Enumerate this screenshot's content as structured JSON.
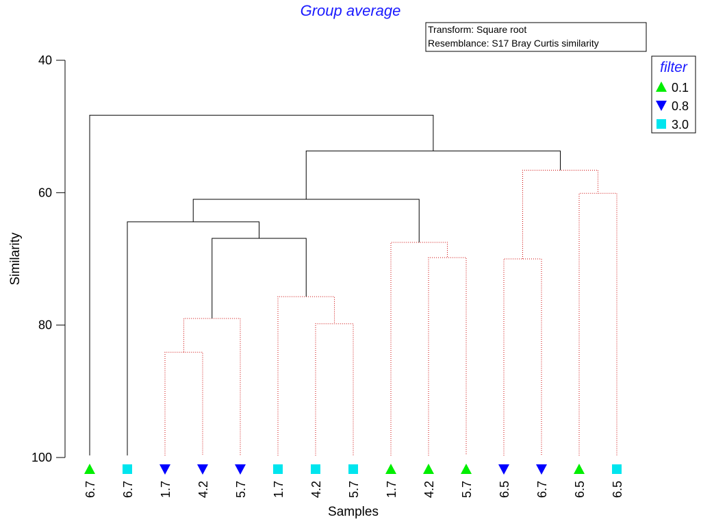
{
  "chart_data": {
    "type": "dendrogram",
    "title": "Group average",
    "info_box": [
      "Transform: Square root",
      "Resemblance: S17 Bray Curtis similarity"
    ],
    "xlabel": "Samples",
    "ylabel": "Similarity",
    "ylim": [
      100,
      40
    ],
    "yticks": [
      40,
      60,
      80,
      100
    ],
    "legend": {
      "title": "filter",
      "placement": "top-right",
      "entries": [
        {
          "label": "0.1",
          "marker": "triangle-up",
          "color": "#00ee00"
        },
        {
          "label": "0.8",
          "marker": "triangle-down",
          "color": "#0000ff"
        },
        {
          "label": "3.0",
          "marker": "square",
          "color": "#00e5ee"
        }
      ]
    },
    "samples": [
      {
        "label": "6.7",
        "filter": "0.1"
      },
      {
        "label": "6.7",
        "filter": "3.0"
      },
      {
        "label": "1.7",
        "filter": "0.8"
      },
      {
        "label": "4.2",
        "filter": "0.8"
      },
      {
        "label": "5.7",
        "filter": "0.8"
      },
      {
        "label": "1.7",
        "filter": "3.0"
      },
      {
        "label": "4.2",
        "filter": "3.0"
      },
      {
        "label": "5.7",
        "filter": "3.0"
      },
      {
        "label": "1.7",
        "filter": "0.1"
      },
      {
        "label": "4.2",
        "filter": "0.1"
      },
      {
        "label": "5.7",
        "filter": "0.1"
      },
      {
        "label": "6.5",
        "filter": "0.8"
      },
      {
        "label": "6.7",
        "filter": "0.8"
      },
      {
        "label": "6.5",
        "filter": "0.1"
      },
      {
        "label": "6.5",
        "filter": "3.0"
      }
    ],
    "merges": [
      {
        "a": 2,
        "b": 3,
        "sim": 84.1,
        "style": "dotted"
      },
      {
        "a": 15,
        "b": 4,
        "sim": 79.0,
        "style": "dotted"
      },
      {
        "a": 6,
        "b": 7,
        "sim": 79.8,
        "style": "dotted"
      },
      {
        "a": 5,
        "b": 17,
        "sim": 75.7,
        "style": "dotted"
      },
      {
        "a": 16,
        "b": 18,
        "sim": 66.9,
        "style": "solid"
      },
      {
        "a": 1,
        "b": 19,
        "sim": 64.4,
        "style": "solid"
      },
      {
        "a": 9,
        "b": 10,
        "sim": 69.8,
        "style": "dotted"
      },
      {
        "a": 8,
        "b": 21,
        "sim": 67.5,
        "style": "dotted"
      },
      {
        "a": 20,
        "b": 22,
        "sim": 61.0,
        "style": "solid"
      },
      {
        "a": 11,
        "b": 12,
        "sim": 70.0,
        "style": "dotted"
      },
      {
        "a": 13,
        "b": 14,
        "sim": 60.1,
        "style": "dotted"
      },
      {
        "a": 24,
        "b": 25,
        "sim": 56.6,
        "style": "dotted"
      },
      {
        "a": 23,
        "b": 26,
        "sim": 53.7,
        "style": "solid"
      },
      {
        "a": 0,
        "b": 27,
        "sim": 48.3,
        "style": "solid"
      }
    ]
  }
}
